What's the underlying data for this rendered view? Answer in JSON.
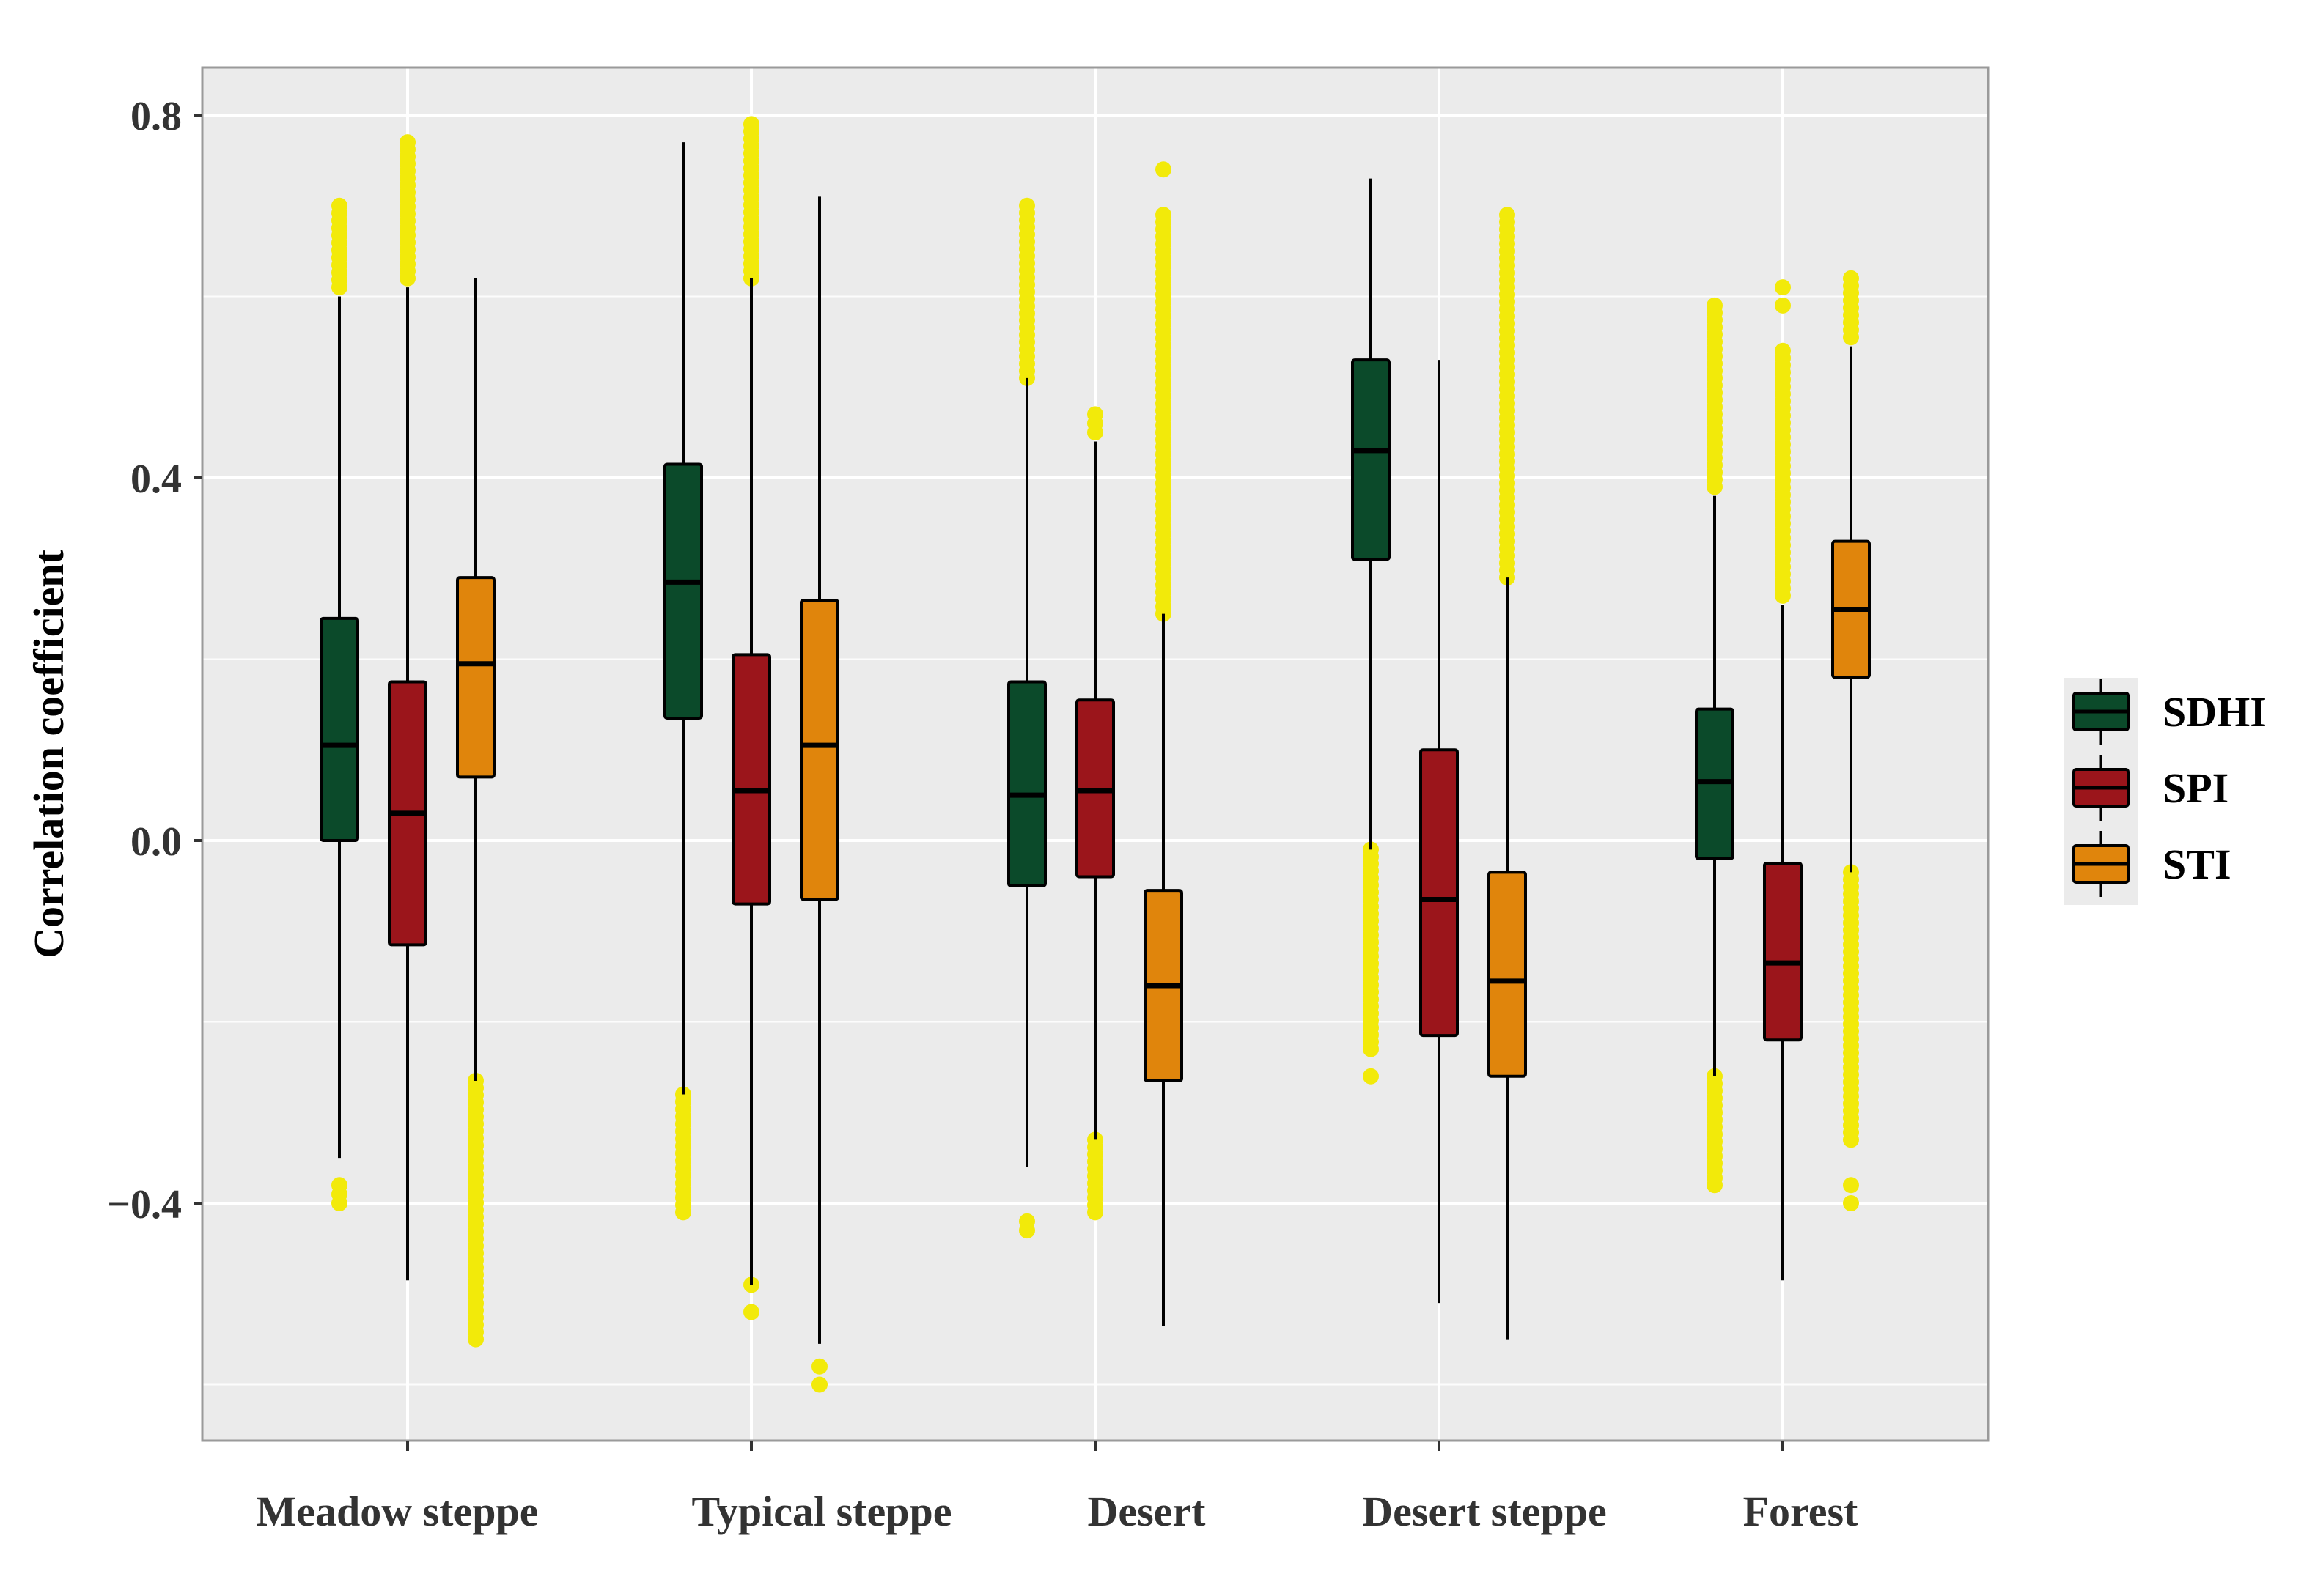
{
  "chart_data": {
    "type": "boxplot",
    "ylabel": "Correlation coefficient",
    "xlabel": "",
    "ylim": [
      -0.65,
      0.85
    ],
    "yticks": [
      {
        "value": -0.4,
        "label": "−0.4"
      },
      {
        "value": 0.0,
        "label": "0.0"
      },
      {
        "value": 0.4,
        "label": "0.4"
      },
      {
        "value": 0.8,
        "label": "0.8"
      }
    ],
    "categories": [
      "Meadow steppe",
      "Typical steppe",
      "Desert",
      "Desert steppe",
      "Forest"
    ],
    "legend": {
      "position": "right",
      "entries": [
        "SDHI",
        "SPI",
        "STI"
      ]
    },
    "colors": {
      "SDHI": "#0b4a2a",
      "SPI": "#9b151b",
      "STI": "#e0850c",
      "outlier": "#f2ea0a",
      "panel": "#ebebeb",
      "grid": "#ffffff"
    },
    "series": [
      {
        "name": "SDHI",
        "boxes": [
          {
            "whisker_low": -0.35,
            "q1": 0.0,
            "median": 0.105,
            "q3": 0.245,
            "whisker_high": 0.6,
            "outliers_low": [
              -0.38,
              -0.39,
              -0.4
            ],
            "outliers_high_range": [
              0.61,
              0.7
            ]
          },
          {
            "whisker_low": -0.28,
            "q1": 0.135,
            "median": 0.285,
            "q3": 0.415,
            "whisker_high": 0.77,
            "outliers_low_range": [
              -0.41,
              -0.28
            ]
          },
          {
            "whisker_low": -0.36,
            "q1": -0.05,
            "median": 0.05,
            "q3": 0.175,
            "whisker_high": 0.51,
            "outliers_low": [
              -0.42,
              -0.43
            ],
            "outliers_high_range": [
              0.51,
              0.7
            ]
          },
          {
            "whisker_low": -0.01,
            "q1": 0.31,
            "median": 0.43,
            "q3": 0.53,
            "whisker_high": 0.73,
            "outliers_low_range": [
              -0.23,
              -0.01
            ],
            "outliers_low": [
              -0.26
            ]
          },
          {
            "whisker_low": -0.26,
            "q1": -0.02,
            "median": 0.065,
            "q3": 0.145,
            "whisker_high": 0.38,
            "outliers_low_range": [
              -0.38,
              -0.26
            ],
            "outliers_high_range": [
              0.39,
              0.59
            ]
          }
        ]
      },
      {
        "name": "SPI",
        "boxes": [
          {
            "whisker_low": -0.485,
            "q1": -0.115,
            "median": 0.03,
            "q3": 0.175,
            "whisker_high": 0.61,
            "outliers_high_range": [
              0.62,
              0.77
            ]
          },
          {
            "whisker_low": -0.49,
            "q1": -0.07,
            "median": 0.055,
            "q3": 0.205,
            "whisker_high": 0.62,
            "outliers_low": [
              -0.49,
              -0.52
            ],
            "outliers_high_range": [
              0.62,
              0.79
            ]
          },
          {
            "whisker_low": -0.33,
            "q1": -0.04,
            "median": 0.055,
            "q3": 0.155,
            "whisker_high": 0.44,
            "outliers_low_range": [
              -0.41,
              -0.33
            ],
            "outliers_high_range": [
              0.45,
              0.47
            ]
          },
          {
            "whisker_low": -0.51,
            "q1": -0.215,
            "median": -0.065,
            "q3": 0.1,
            "whisker_high": 0.53
          },
          {
            "whisker_low": -0.485,
            "q1": -0.22,
            "median": -0.135,
            "q3": -0.025,
            "whisker_high": 0.26,
            "outliers_high_range": [
              0.27,
              0.54
            ],
            "outliers_high": [
              0.59,
              0.61
            ]
          }
        ]
      },
      {
        "name": "STI",
        "boxes": [
          {
            "whisker_low": -0.265,
            "q1": 0.07,
            "median": 0.195,
            "q3": 0.29,
            "whisker_high": 0.62,
            "outliers_low_range": [
              -0.55,
              -0.265
            ]
          },
          {
            "whisker_low": -0.555,
            "q1": -0.065,
            "median": 0.105,
            "q3": 0.265,
            "whisker_high": 0.71,
            "outliers_low": [
              -0.58,
              -0.6
            ]
          },
          {
            "whisker_low": -0.535,
            "q1": -0.265,
            "median": -0.16,
            "q3": -0.055,
            "whisker_high": 0.25,
            "outliers_high_range": [
              0.25,
              0.69
            ],
            "outliers_high": [
              0.74
            ]
          },
          {
            "whisker_low": -0.55,
            "q1": -0.26,
            "median": -0.155,
            "q3": -0.035,
            "whisker_high": 0.29,
            "outliers_high_range": [
              0.29,
              0.69
            ]
          },
          {
            "whisker_low": -0.035,
            "q1": 0.18,
            "median": 0.255,
            "q3": 0.33,
            "whisker_high": 0.545,
            "outliers_low_range": [
              -0.33,
              -0.035
            ],
            "outliers_low": [
              -0.38,
              -0.4
            ],
            "outliers_high_range": [
              0.555,
              0.62
            ]
          }
        ]
      }
    ]
  }
}
